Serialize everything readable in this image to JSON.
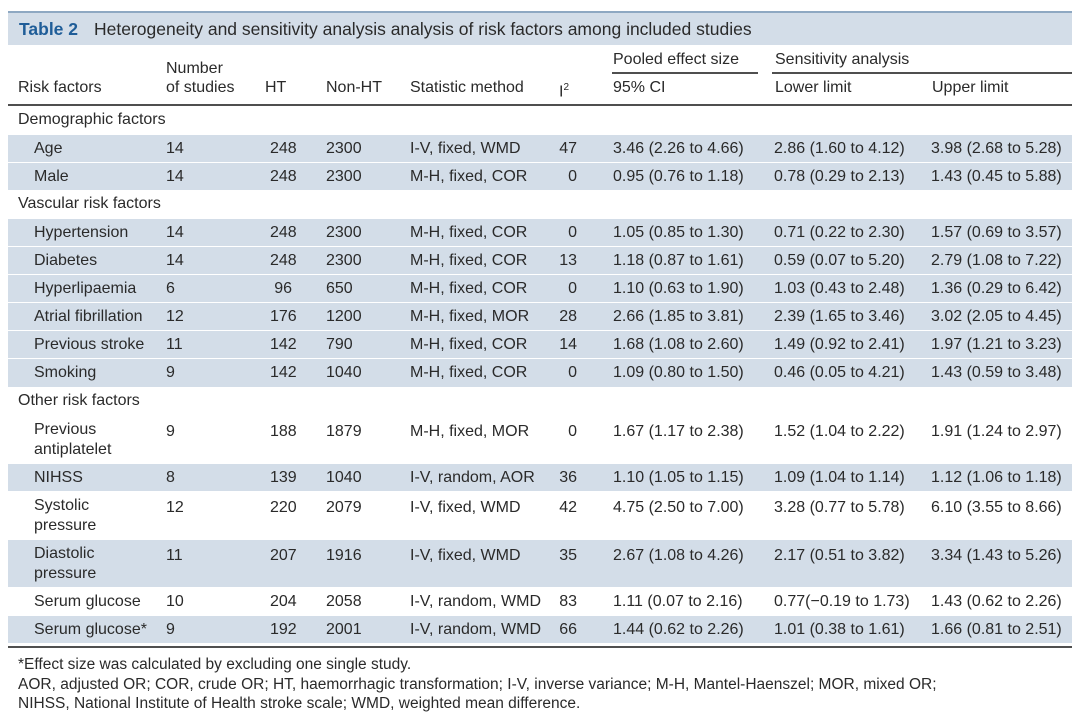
{
  "title": {
    "label": "Table 2",
    "text": "Heterogeneity and sensitivity analysis analysis of risk factors among included studies"
  },
  "headers": {
    "risk_factors": "Risk factors",
    "number_line1": "Number",
    "number_line2": "of studies",
    "ht": "HT",
    "non_ht": "Non-HT",
    "statistic_method": "Statistic method",
    "i2_base": "I",
    "i2_sup": "2",
    "pooled_effect_size": "Pooled effect size",
    "sensitivity_analysis": "Sensitivity analysis",
    "ci95": "95% CI",
    "lower_limit": "Lower limit",
    "upper_limit": "Upper limit"
  },
  "sections": {
    "demographic": "Demographic factors",
    "vascular": "Vascular risk factors",
    "other": "Other risk factors"
  },
  "rows": [
    {
      "factor": "Age",
      "n": "14",
      "ht": "248",
      "nonht": "2300",
      "method": "I-V, fixed, WMD",
      "i2": "47",
      "ci": "3.46 (2.26 to 4.66)",
      "lower": "2.86 (1.60 to 4.12)",
      "upper": "3.98 (2.68 to 5.28)"
    },
    {
      "factor": "Male",
      "n": "14",
      "ht": "248",
      "nonht": "2300",
      "method": "M-H, fixed, COR",
      "i2": "0",
      "ci": "0.95 (0.76 to 1.18)",
      "lower": "0.78 (0.29 to 2.13)",
      "upper": "1.43 (0.45 to 5.88)"
    },
    {
      "factor": "Hypertension",
      "n": "14",
      "ht": "248",
      "nonht": "2300",
      "method": "M-H, fixed, COR",
      "i2": "0",
      "ci": "1.05 (0.85 to 1.30)",
      "lower": "0.71 (0.22 to 2.30)",
      "upper": "1.57 (0.69 to 3.57)"
    },
    {
      "factor": "Diabetes",
      "n": "14",
      "ht": "248",
      "nonht": "2300",
      "method": "M-H, fixed, COR",
      "i2": "13",
      "ci": "1.18 (0.87 to 1.61)",
      "lower": "0.59 (0.07 to 5.20)",
      "upper": "2.79 (1.08 to 7.22)"
    },
    {
      "factor": "Hyperlipaemia",
      "n": "6",
      "ht": "96",
      "nonht": "650",
      "method": "M-H, fixed, COR",
      "i2": "0",
      "ci": "1.10 (0.63 to 1.90)",
      "lower": "1.03 (0.43 to 2.48)",
      "upper": "1.36 (0.29 to 6.42)"
    },
    {
      "factor": "Atrial fibrillation",
      "n": "12",
      "ht": "176",
      "nonht": "1200",
      "method": "M-H, fixed, MOR",
      "i2": "28",
      "ci": "2.66 (1.85 to 3.81)",
      "lower": "2.39 (1.65 to 3.46)",
      "upper": "3.02 (2.05 to 4.45)"
    },
    {
      "factor": "Previous stroke",
      "n": "11",
      "ht": "142",
      "nonht": "790",
      "method": "M-H, fixed, COR",
      "i2": "14",
      "ci": "1.68 (1.08 to 2.60)",
      "lower": "1.49 (0.92 to 2.41)",
      "upper": "1.97 (1.21 to 3.23)"
    },
    {
      "factor": "Smoking",
      "n": "9",
      "ht": "142",
      "nonht": "1040",
      "method": "M-H, fixed, COR",
      "i2": "0",
      "ci": "1.09 (0.80 to 1.50)",
      "lower": "0.46 (0.05 to 4.21)",
      "upper": "1.43 (0.59 to 3.48)"
    },
    {
      "factor": "Previous antiplatelet",
      "n": "9",
      "ht": "188",
      "nonht": "1879",
      "method": "M-H, fixed, MOR",
      "i2": "0",
      "ci": "1.67 (1.17 to 2.38)",
      "lower": "1.52 (1.04 to 2.22)",
      "upper": "1.91 (1.24 to 2.97)"
    },
    {
      "factor": "NIHSS",
      "n": "8",
      "ht": "139",
      "nonht": "1040",
      "method": "I-V, random, AOR",
      "i2": "36",
      "ci": "1.10 (1.05 to 1.15)",
      "lower": "1.09 (1.04 to 1.14)",
      "upper": "1.12 (1.06 to 1.18)"
    },
    {
      "factor": "Systolic pressure",
      "n": "12",
      "ht": "220",
      "nonht": "2079",
      "method": "I-V, fixed, WMD",
      "i2": "42",
      "ci": "4.75 (2.50 to 7.00)",
      "lower": "3.28 (0.77 to 5.78)",
      "upper": "6.10 (3.55 to 8.66)"
    },
    {
      "factor": "Diastolic pressure",
      "n": "11",
      "ht": "207",
      "nonht": "1916",
      "method": "I-V, fixed, WMD",
      "i2": "35",
      "ci": "2.67 (1.08 to 4.26)",
      "lower": "2.17 (0.51 to 3.82)",
      "upper": "3.34 (1.43 to 5.26)"
    },
    {
      "factor": "Serum glucose",
      "n": "10",
      "ht": "204",
      "nonht": "2058",
      "method": "I-V, random, WMD",
      "i2": "83",
      "ci": "1.11 (0.07 to 2.16)",
      "lower": "0.77(−0.19 to 1.73)",
      "upper": "1.43 (0.62 to 2.26)"
    },
    {
      "factor": "Serum glucose*",
      "n": "9",
      "ht": "192",
      "nonht": "2001",
      "method": "I-V, random, WMD",
      "i2": "66",
      "ci": "1.44 (0.62 to 2.26)",
      "lower": "1.01 (0.38 to 1.61)",
      "upper": "1.66 (0.81 to 2.51)"
    }
  ],
  "footnotes": [
    "*Effect size was calculated by excluding one single study.",
    "AOR, adjusted  OR; COR, crude OR; HT, haemorrhagic   transformation;  I-V, inverse variance;  M-H, Mantel-Haenszel; MOR, mixed OR;",
    "NIHSS, National Institute of Health stroke scale; WMD, weighted mean difference."
  ]
}
